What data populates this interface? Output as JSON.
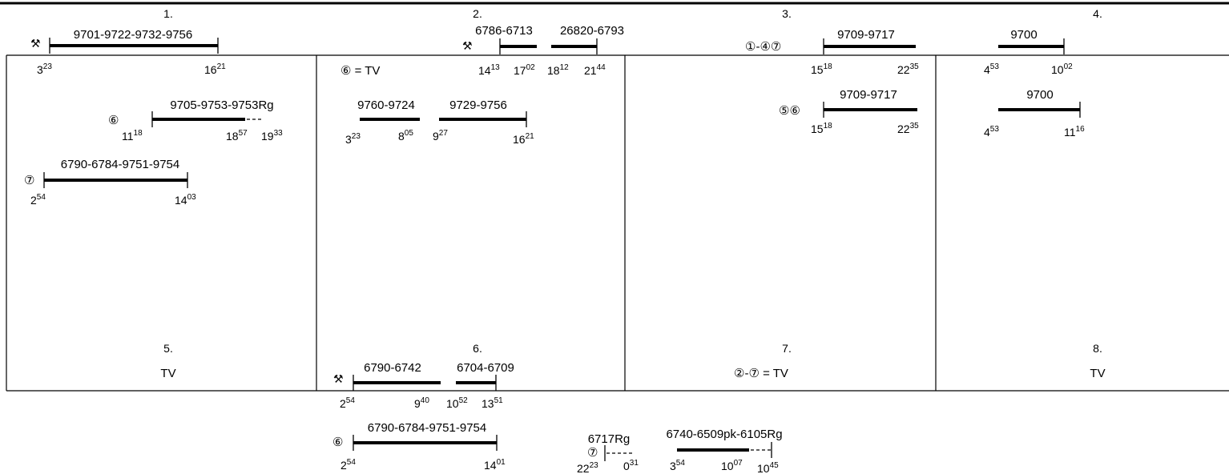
{
  "days": {
    "d1": "1.",
    "d2": "2.",
    "d3": "3.",
    "d4": "4.",
    "d5": "5.",
    "d6": "6.",
    "d7": "7.",
    "d8": "8."
  },
  "notes": {
    "day2_tv": "⑥ = TV",
    "day5_tv": "TV",
    "day7_tv": "②-⑦ = TV",
    "day8_tv": "TV"
  },
  "symbols": {
    "hammer_icon": "⚒",
    "circle_6": "⑥",
    "circle_7": "⑦",
    "range_1_4_7": "①-④⑦",
    "range_5_6": "⑤⑥"
  },
  "shifts": {
    "s1": {
      "train": "9701-9722-9732-9756",
      "start_h": "3",
      "start_m": "23",
      "end_h": "16",
      "end_m": "21"
    },
    "s2": {
      "train": "9705-9753-9753Rg",
      "start_h": "11",
      "start_m": "18",
      "mid_h": "18",
      "mid_m": "57",
      "end_h": "19",
      "end_m": "33"
    },
    "s3": {
      "train": "6790-6784-9751-9754",
      "start_h": "2",
      "start_m": "54",
      "end_h": "14",
      "end_m": "03"
    },
    "s4a": {
      "train": "6786-6713",
      "start_h": "14",
      "start_m": "13",
      "end_h": "17",
      "end_m": "02"
    },
    "s4b": {
      "train": "26820-6793",
      "start_h": "18",
      "start_m": "12",
      "end_h": "21",
      "end_m": "44"
    },
    "s5a": {
      "train": "9760-9724",
      "start_h": "3",
      "start_m": "23",
      "end_h": "8",
      "end_m": "05"
    },
    "s5b": {
      "train": "9729-9756",
      "start_h": "9",
      "start_m": "27",
      "end_h": "16",
      "end_m": "21"
    },
    "s6": {
      "train": "9709-9717",
      "start_h": "15",
      "start_m": "18",
      "end_h": "22",
      "end_m": "35"
    },
    "s7": {
      "train": "9709-9717",
      "start_h": "15",
      "start_m": "18",
      "end_h": "22",
      "end_m": "35"
    },
    "s8": {
      "train": "9700",
      "start_h": "4",
      "start_m": "53",
      "end_h": "10",
      "end_m": "02"
    },
    "s9": {
      "train": "9700",
      "start_h": "4",
      "start_m": "53",
      "end_h": "11",
      "end_m": "16"
    },
    "s10a": {
      "train": "6790-6742",
      "start_h": "2",
      "start_m": "54",
      "end_h": "9",
      "end_m": "40"
    },
    "s10b": {
      "train": "6704-6709",
      "start_h": "10",
      "start_m": "52",
      "end_h": "13",
      "end_m": "51"
    },
    "s11": {
      "train": "6790-6784-9751-9754",
      "start_h": "2",
      "start_m": "54",
      "end_h": "14",
      "end_m": "01"
    },
    "s12": {
      "train": "6717Rg",
      "start_h": "22",
      "start_m": "23",
      "end_h": "0",
      "end_m": "31"
    },
    "s13": {
      "train": "6740-6509pk-6105Rg",
      "start_h": "3",
      "start_m": "54",
      "mid_h": "10",
      "mid_m": "07",
      "end_h": "10",
      "end_m": "45"
    }
  }
}
